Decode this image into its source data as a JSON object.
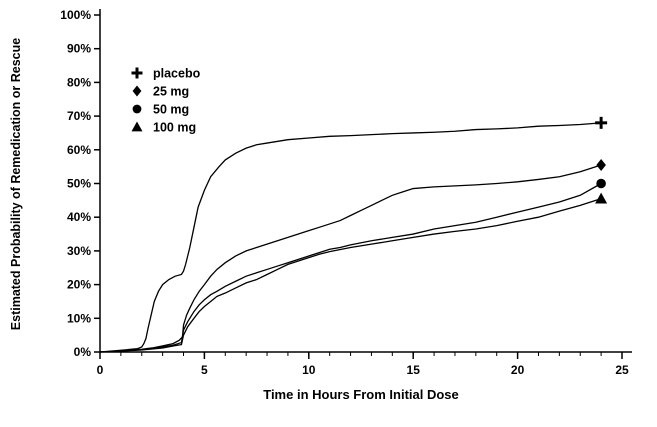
{
  "chart_data": {
    "type": "line",
    "title": "",
    "xlabel": "Time in Hours From Initial Dose",
    "ylabel": "Estimated Probability of Remedication or Rescue",
    "xlim": [
      0,
      25
    ],
    "ylim": [
      0,
      100
    ],
    "grid": false,
    "background_color": "#ffffff",
    "line_color": "#000000",
    "legend_position": "inside-top-left",
    "x_major_ticks": [
      0,
      5,
      10,
      15,
      20,
      25
    ],
    "x_tick_labels": [
      "0",
      "5",
      "10",
      "15",
      "20",
      "25"
    ],
    "x_minor_tick_step": 1,
    "y_ticks": [
      0,
      10,
      20,
      30,
      40,
      50,
      60,
      70,
      80,
      90,
      100
    ],
    "y_tick_labels": [
      "0%",
      "10%",
      "20%",
      "30%",
      "40%",
      "50%",
      "60%",
      "70%",
      "80%",
      "90%",
      "100%"
    ],
    "series": [
      {
        "name": "placebo",
        "marker": "plus",
        "points": [
          [
            0,
            0
          ],
          [
            1,
            0.5
          ],
          [
            1.8,
            1
          ],
          [
            2,
            1.5
          ],
          [
            2.1,
            2.5
          ],
          [
            2.2,
            4
          ],
          [
            2.3,
            7
          ],
          [
            2.45,
            11
          ],
          [
            2.6,
            15
          ],
          [
            2.8,
            18
          ],
          [
            3,
            20
          ],
          [
            3.3,
            21.5
          ],
          [
            3.6,
            22.5
          ],
          [
            3.9,
            23
          ],
          [
            4,
            24
          ],
          [
            4.1,
            26
          ],
          [
            4.3,
            31
          ],
          [
            4.5,
            37
          ],
          [
            4.7,
            43
          ],
          [
            5,
            48
          ],
          [
            5.3,
            52
          ],
          [
            5.7,
            55
          ],
          [
            6,
            57
          ],
          [
            6.5,
            59
          ],
          [
            7,
            60.5
          ],
          [
            7.5,
            61.5
          ],
          [
            8,
            62
          ],
          [
            9,
            63
          ],
          [
            10,
            63.5
          ],
          [
            11,
            64
          ],
          [
            12,
            64.2
          ],
          [
            13,
            64.5
          ],
          [
            14,
            64.8
          ],
          [
            15,
            65
          ],
          [
            16,
            65.2
          ],
          [
            17,
            65.5
          ],
          [
            18,
            66
          ],
          [
            19,
            66.2
          ],
          [
            20,
            66.5
          ],
          [
            21,
            67
          ],
          [
            22,
            67.2
          ],
          [
            23,
            67.5
          ],
          [
            24,
            68
          ]
        ]
      },
      {
        "name": "25 mg",
        "marker": "diamond",
        "points": [
          [
            0,
            0
          ],
          [
            1,
            0.3
          ],
          [
            2,
            0.8
          ],
          [
            2.5,
            1.2
          ],
          [
            3,
            1.8
          ],
          [
            3.5,
            2.5
          ],
          [
            3.8,
            3.5
          ],
          [
            3.95,
            4.5
          ],
          [
            4,
            8
          ],
          [
            4.15,
            11
          ],
          [
            4.3,
            13
          ],
          [
            4.5,
            15.5
          ],
          [
            4.75,
            18
          ],
          [
            5,
            20
          ],
          [
            5.3,
            22.5
          ],
          [
            5.6,
            24.5
          ],
          [
            6,
            26.5
          ],
          [
            6.5,
            28.5
          ],
          [
            7,
            30
          ],
          [
            7.5,
            31
          ],
          [
            8,
            32
          ],
          [
            8.5,
            33
          ],
          [
            9,
            34
          ],
          [
            9.5,
            35
          ],
          [
            10,
            36
          ],
          [
            10.5,
            37
          ],
          [
            11,
            38
          ],
          [
            11.5,
            39
          ],
          [
            12,
            40.5
          ],
          [
            12.5,
            42
          ],
          [
            13,
            43.5
          ],
          [
            13.5,
            45
          ],
          [
            14,
            46.5
          ],
          [
            14.5,
            47.5
          ],
          [
            15,
            48.5
          ],
          [
            16,
            49
          ],
          [
            17,
            49.3
          ],
          [
            18,
            49.6
          ],
          [
            19,
            50
          ],
          [
            20,
            50.5
          ],
          [
            21,
            51.2
          ],
          [
            22,
            52
          ],
          [
            23,
            53.5
          ],
          [
            24,
            55.5
          ]
        ]
      },
      {
        "name": "50 mg",
        "marker": "circle",
        "points": [
          [
            0,
            0
          ],
          [
            1,
            0.3
          ],
          [
            2,
            0.7
          ],
          [
            3,
            1.5
          ],
          [
            3.5,
            2
          ],
          [
            3.9,
            2.8
          ],
          [
            4,
            6.5
          ],
          [
            4.2,
            9
          ],
          [
            4.5,
            12
          ],
          [
            4.75,
            14
          ],
          [
            5,
            15.5
          ],
          [
            5.3,
            17
          ],
          [
            5.6,
            18
          ],
          [
            6,
            19.5
          ],
          [
            6.5,
            21
          ],
          [
            7,
            22.5
          ],
          [
            7.5,
            23.5
          ],
          [
            8,
            24.5
          ],
          [
            8.5,
            25.5
          ],
          [
            9,
            26.5
          ],
          [
            9.5,
            27.5
          ],
          [
            10,
            28.5
          ],
          [
            10.5,
            29.5
          ],
          [
            11,
            30.5
          ],
          [
            11.5,
            31
          ],
          [
            12,
            31.8
          ],
          [
            13,
            33
          ],
          [
            14,
            34
          ],
          [
            15,
            35
          ],
          [
            16,
            36.5
          ],
          [
            17,
            37.5
          ],
          [
            18,
            38.5
          ],
          [
            19,
            40
          ],
          [
            20,
            41.5
          ],
          [
            21,
            43
          ],
          [
            22,
            44.5
          ],
          [
            23,
            46.5
          ],
          [
            24,
            50
          ]
        ]
      },
      {
        "name": "100 mg",
        "marker": "triangle",
        "points": [
          [
            0,
            0
          ],
          [
            1,
            0.3
          ],
          [
            2,
            0.6
          ],
          [
            3,
            1.2
          ],
          [
            3.5,
            1.8
          ],
          [
            3.9,
            2.2
          ],
          [
            4,
            5
          ],
          [
            4.2,
            7.5
          ],
          [
            4.5,
            10
          ],
          [
            4.75,
            12
          ],
          [
            5,
            13.5
          ],
          [
            5.3,
            15
          ],
          [
            5.6,
            16.5
          ],
          [
            6,
            17.5
          ],
          [
            6.5,
            19
          ],
          [
            7,
            20.5
          ],
          [
            7.5,
            21.5
          ],
          [
            8,
            23
          ],
          [
            8.5,
            24.5
          ],
          [
            9,
            26
          ],
          [
            9.5,
            27
          ],
          [
            10,
            28
          ],
          [
            10.5,
            29
          ],
          [
            11,
            29.8
          ],
          [
            12,
            31
          ],
          [
            13,
            32
          ],
          [
            14,
            33
          ],
          [
            15,
            34
          ],
          [
            16,
            35
          ],
          [
            17,
            35.8
          ],
          [
            18,
            36.5
          ],
          [
            19,
            37.5
          ],
          [
            20,
            38.8
          ],
          [
            21,
            40
          ],
          [
            22,
            41.8
          ],
          [
            23,
            43.5
          ],
          [
            24,
            45.5
          ]
        ]
      }
    ]
  }
}
